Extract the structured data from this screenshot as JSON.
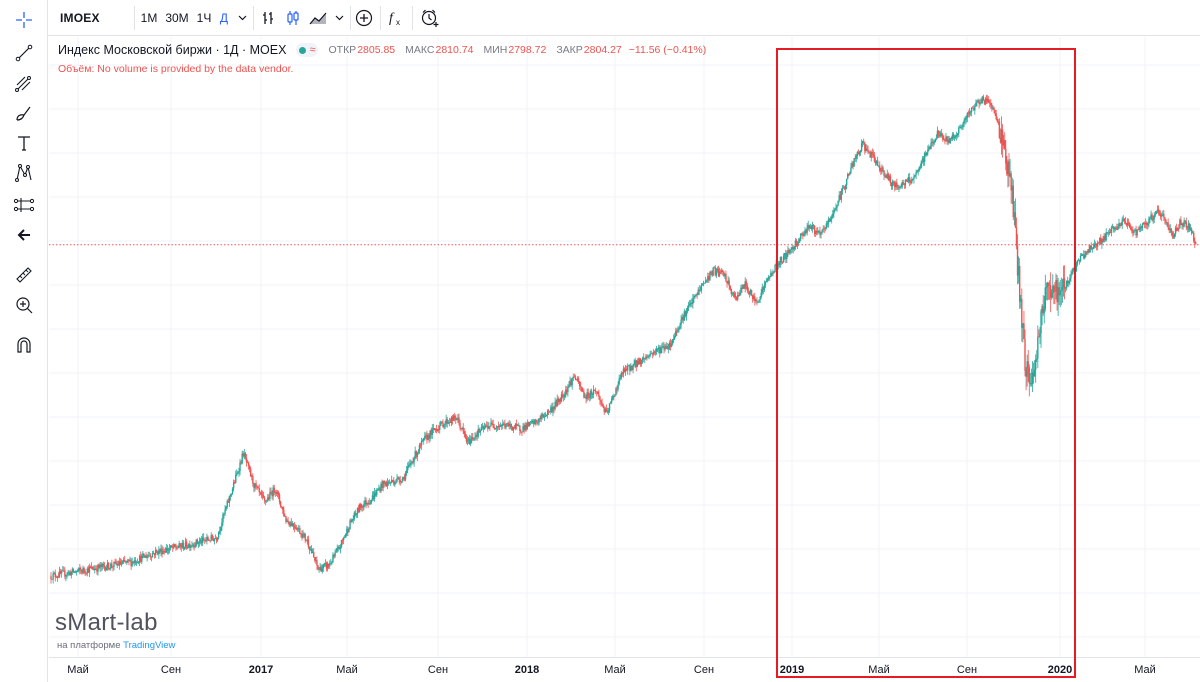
{
  "toolbar": {
    "symbol": "IMOEX",
    "timeframes": [
      "1М",
      "30М",
      "1Ч",
      "Д"
    ],
    "active_timeframe": "Д",
    "icons": [
      "dropdown-chevron-icon",
      "bar-chart-icon",
      "candles-icon",
      "area-chart-icon",
      "chevron-down-icon",
      "compare-add-icon",
      "indicators-fx-icon",
      "alert-clock-icon"
    ]
  },
  "left_tools": [
    "crosshair-icon",
    "trend-line-icon",
    "pitchfork-icon",
    "brush-icon",
    "text-icon",
    "pattern-icon",
    "prediction-icon",
    "back-arrow-icon",
    "ruler-icon",
    "zoom-in-icon",
    "magnet-icon"
  ],
  "legend": {
    "title": "Индекс Московской биржи · 1Д · MOEX",
    "status_symbol": "≈",
    "open_label": "ОТКР",
    "open": "2805.85",
    "high_label": "МАКС",
    "high": "2810.74",
    "low_label": "МИН",
    "low": "2798.72",
    "close_label": "ЗАКР",
    "close": "2804.27",
    "change": "−11.56 (−0.41%)"
  },
  "volume_message": "Объём: No volume is provided by the data vendor.",
  "watermark": {
    "brand": "sMart-lab",
    "prefix": "на платформе",
    "platform": "TradingView"
  },
  "time_axis": [
    "Май",
    "Сен",
    "2017",
    "Май",
    "Сен",
    "2018",
    "Май",
    "Сен",
    "2019",
    "Май",
    "Сен",
    "2020",
    "Май"
  ],
  "colors": {
    "up": "#26a69a",
    "down": "#ef5350",
    "highlight": "#e51c23",
    "last_price_line": "#ef5350",
    "accent": "#2962ff"
  },
  "chart_data": {
    "type": "candlestick",
    "period": "1D",
    "x_start": "2016-04",
    "x_end": "2020-07",
    "x_unit": "month",
    "anchor_points": [
      [
        0.0,
        1860
      ],
      [
        0.15,
        1880
      ],
      [
        0.3,
        1900
      ],
      [
        0.4,
        1930
      ],
      [
        0.52,
        1950
      ],
      [
        0.62,
        1970
      ],
      [
        0.68,
        2110
      ],
      [
        0.72,
        2210
      ],
      [
        0.76,
        2120
      ],
      [
        0.8,
        2070
      ],
      [
        0.84,
        2110
      ],
      [
        0.88,
        2020
      ],
      [
        0.92,
        2000
      ],
      [
        0.96,
        1960
      ],
      [
        1.0,
        1880
      ],
      [
        1.04,
        1890
      ],
      [
        1.08,
        1940
      ],
      [
        1.12,
        2010
      ],
      [
        1.16,
        2060
      ],
      [
        1.2,
        2080
      ],
      [
        1.24,
        2120
      ],
      [
        1.28,
        2130
      ],
      [
        1.32,
        2140
      ],
      [
        1.36,
        2200
      ],
      [
        1.4,
        2250
      ],
      [
        1.44,
        2280
      ],
      [
        1.48,
        2300
      ],
      [
        1.52,
        2310
      ],
      [
        1.56,
        2240
      ],
      [
        1.6,
        2270
      ],
      [
        1.64,
        2290
      ],
      [
        1.7,
        2290
      ],
      [
        1.76,
        2280
      ],
      [
        1.82,
        2300
      ],
      [
        1.88,
        2340
      ],
      [
        1.92,
        2380
      ],
      [
        1.96,
        2430
      ],
      [
        2.0,
        2370
      ],
      [
        2.04,
        2390
      ],
      [
        2.08,
        2320
      ],
      [
        2.14,
        2440
      ],
      [
        2.2,
        2470
      ],
      [
        2.26,
        2500
      ],
      [
        2.32,
        2520
      ],
      [
        2.36,
        2590
      ],
      [
        2.4,
        2640
      ],
      [
        2.44,
        2690
      ],
      [
        2.48,
        2730
      ],
      [
        2.52,
        2720
      ],
      [
        2.56,
        2650
      ],
      [
        2.6,
        2690
      ],
      [
        2.64,
        2640
      ],
      [
        2.68,
        2700
      ],
      [
        2.72,
        2750
      ],
      [
        2.76,
        2780
      ],
      [
        2.8,
        2820
      ],
      [
        2.84,
        2860
      ],
      [
        2.88,
        2830
      ],
      [
        2.92,
        2880
      ],
      [
        2.96,
        2950
      ],
      [
        3.0,
        3030
      ],
      [
        3.04,
        3090
      ],
      [
        3.08,
        3050
      ],
      [
        3.12,
        3010
      ],
      [
        3.16,
        2970
      ],
      [
        3.2,
        2980
      ],
      [
        3.24,
        3000
      ],
      [
        3.28,
        3070
      ],
      [
        3.32,
        3120
      ],
      [
        3.36,
        3100
      ],
      [
        3.4,
        3130
      ],
      [
        3.44,
        3180
      ],
      [
        3.48,
        3220
      ],
      [
        3.52,
        3210
      ],
      [
        3.56,
        3120
      ],
      [
        3.6,
        2950
      ],
      [
        3.62,
        2750
      ],
      [
        3.65,
        2450
      ],
      [
        3.68,
        2420
      ],
      [
        3.71,
        2620
      ],
      [
        3.74,
        2690
      ],
      [
        3.78,
        2660
      ],
      [
        3.82,
        2720
      ],
      [
        3.86,
        2770
      ],
      [
        3.9,
        2800
      ],
      [
        3.94,
        2820
      ],
      [
        3.98,
        2850
      ],
      [
        4.02,
        2870
      ],
      [
        4.06,
        2840
      ],
      [
        4.1,
        2860
      ],
      [
        4.14,
        2900
      ],
      [
        4.17,
        2880
      ],
      [
        4.2,
        2830
      ],
      [
        4.23,
        2870
      ],
      [
        4.26,
        2860
      ],
      [
        4.29,
        2804
      ]
    ],
    "last_price": 2804.27,
    "highlighted_period": "2019 — Feb 2020"
  }
}
